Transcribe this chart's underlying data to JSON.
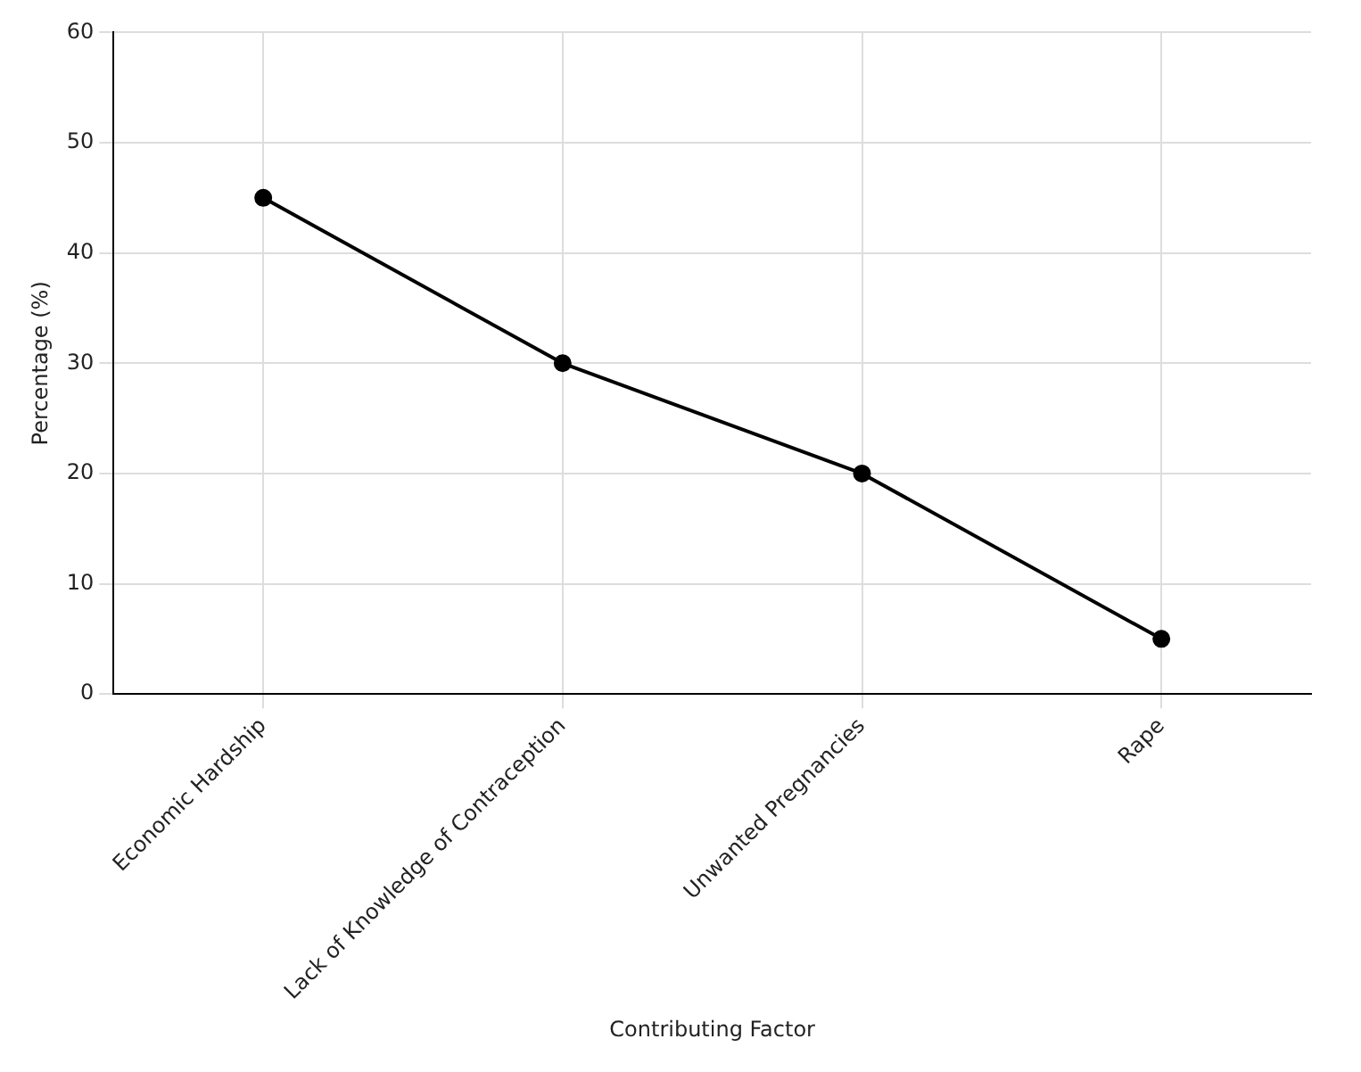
{
  "chart_data": {
    "type": "line",
    "xlabel": "Contributing Factor",
    "ylabel": "Percentage (%)",
    "categories": [
      "Economic Hardship",
      "Lack of Knowledge of Contraception",
      "Unwanted Pregnancies",
      "Rape"
    ],
    "series": [
      {
        "color": "#000000",
        "values": [
          45,
          30,
          20,
          5
        ]
      }
    ],
    "ylim": [
      0,
      60
    ],
    "yticks": [
      0,
      10,
      20,
      30,
      40,
      50,
      60
    ],
    "grid": true,
    "marker": "circle",
    "line_style": "solid",
    "legend": false
  }
}
